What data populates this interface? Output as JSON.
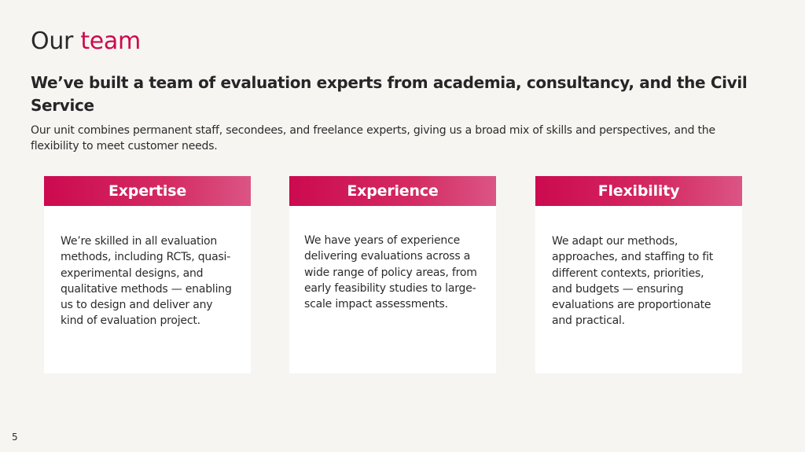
{
  "slide": {
    "title_plain": "Our",
    "title_accent": "team",
    "subtitle": "We’ve built a team of evaluation experts from academia, consultancy, and the Civil Service",
    "intro": "Our unit combines permanent staff, secondees, and freelance experts, giving us a broad mix of skills and perspectives, and the flexibility to meet customer needs.",
    "page_number": "5"
  },
  "cards": [
    {
      "heading": "Expertise",
      "body": "We’re skilled in all evaluation methods, including RCTs, quasi-experimental designs, and qualitative methods — enabling us to design and deliver any kind of evaluation project."
    },
    {
      "heading": "Experience",
      "body": "We have years of experience delivering evaluations across a wide range of policy areas, from early feasibility studies to large-scale impact assessments."
    },
    {
      "heading": "Flexibility",
      "body": "We adapt our methods, approaches, and staffing to fit different contexts, priorities, and budgets — ensuring evaluations are proportionate and practical."
    }
  ],
  "colors": {
    "accent": "#cc0a4f",
    "background": "#f7f5f2",
    "card_background": "#ffffff",
    "text": "#2b2b2b"
  }
}
